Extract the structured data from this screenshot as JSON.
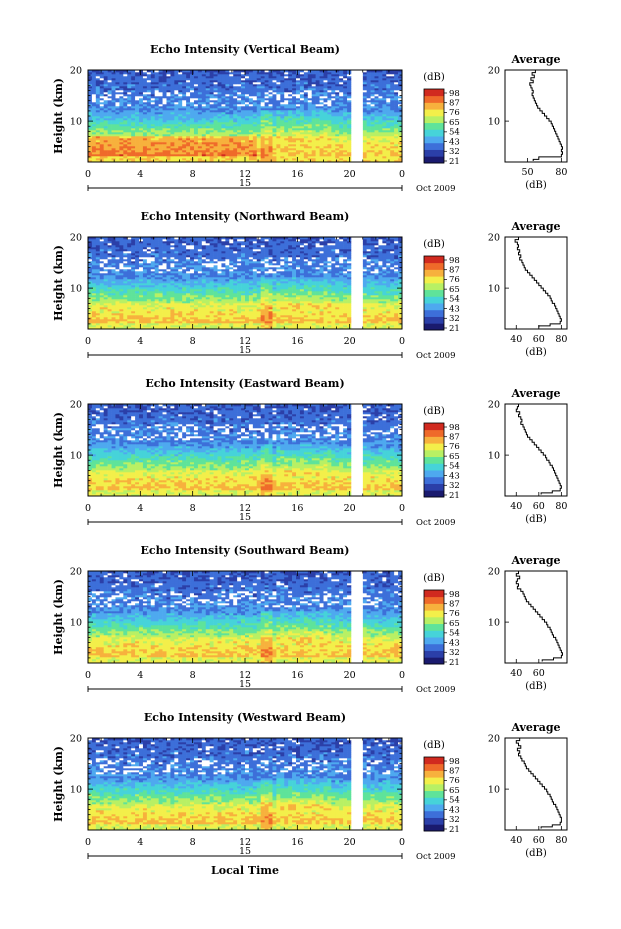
{
  "chart_data": [
    {
      "type": "heatmap",
      "title": "Echo Intensity (Vertical Beam)",
      "ylabel": "Height (km)",
      "xticks": [
        "0",
        "4",
        "8",
        "12",
        "16",
        "20",
        "0"
      ],
      "yticks": [
        "20",
        "10"
      ],
      "ylim": [
        2,
        20
      ],
      "xlim": [
        0,
        24
      ],
      "colorbar": {
        "unit": "(dB)",
        "ticks": [
          "98",
          "87",
          "76",
          "65",
          "54",
          "43",
          "32",
          "21"
        ]
      },
      "date_marker": "15",
      "date_label": "Oct 2009",
      "profile": {
        "title": "Average",
        "xlabel": "(dB)",
        "xticks": [
          "50",
          "80"
        ],
        "yticks": [
          "20",
          "10"
        ],
        "points": [
          [
            55,
            20
          ],
          [
            57,
            19.5
          ],
          [
            54,
            19
          ],
          [
            56,
            18.5
          ],
          [
            53,
            18
          ],
          [
            55,
            17.5
          ],
          [
            52,
            17
          ],
          [
            53,
            16.5
          ],
          [
            54,
            16
          ],
          [
            55,
            15.5
          ],
          [
            54,
            15
          ],
          [
            55,
            14.5
          ],
          [
            56,
            14
          ],
          [
            57,
            13.5
          ],
          [
            58,
            13
          ],
          [
            59,
            12.5
          ],
          [
            61,
            12
          ],
          [
            63,
            11.5
          ],
          [
            65,
            11
          ],
          [
            67,
            10.5
          ],
          [
            69,
            10
          ],
          [
            71,
            9.5
          ],
          [
            72,
            9
          ],
          [
            73,
            8.5
          ],
          [
            74,
            8
          ],
          [
            75,
            7.5
          ],
          [
            76,
            7
          ],
          [
            77,
            6.5
          ],
          [
            78,
            6
          ],
          [
            79,
            5.5
          ],
          [
            80,
            5
          ],
          [
            81,
            4.5
          ],
          [
            80,
            4
          ],
          [
            81,
            3.5
          ],
          [
            80,
            3
          ],
          [
            60,
            2.5
          ],
          [
            55,
            2.2
          ]
        ]
      }
    },
    {
      "type": "heatmap",
      "title": "Echo Intensity (Northward Beam)",
      "ylabel": "Height (km)",
      "xticks": [
        "0",
        "4",
        "8",
        "12",
        "16",
        "20",
        "0"
      ],
      "yticks": [
        "20",
        "10"
      ],
      "ylim": [
        2,
        20
      ],
      "xlim": [
        0,
        24
      ],
      "colorbar": {
        "unit": "(dB)",
        "ticks": [
          "98",
          "87",
          "76",
          "65",
          "54",
          "43",
          "32",
          "21"
        ]
      },
      "date_marker": "15",
      "date_label": "Oct 2009",
      "profile": {
        "title": "Average",
        "xlabel": "(dB)",
        "xticks": [
          "40",
          "60",
          "80"
        ],
        "yticks": [
          "20",
          "10"
        ],
        "points": [
          [
            40,
            20
          ],
          [
            42,
            19.5
          ],
          [
            39,
            19
          ],
          [
            41,
            18.5
          ],
          [
            42,
            18
          ],
          [
            41,
            17.5
          ],
          [
            43,
            17
          ],
          [
            42,
            16.5
          ],
          [
            44,
            16
          ],
          [
            43,
            15.5
          ],
          [
            45,
            15
          ],
          [
            46,
            14.5
          ],
          [
            47,
            14
          ],
          [
            48,
            13.5
          ],
          [
            50,
            13
          ],
          [
            52,
            12.5
          ],
          [
            54,
            12
          ],
          [
            56,
            11.5
          ],
          [
            58,
            11
          ],
          [
            60,
            10.5
          ],
          [
            62,
            10
          ],
          [
            64,
            9.5
          ],
          [
            66,
            9
          ],
          [
            68,
            8.5
          ],
          [
            70,
            8
          ],
          [
            71,
            7.5
          ],
          [
            72,
            7
          ],
          [
            74,
            6.5
          ],
          [
            75,
            6
          ],
          [
            76,
            5.5
          ],
          [
            77,
            5
          ],
          [
            78,
            4.5
          ],
          [
            79,
            4
          ],
          [
            80,
            3.5
          ],
          [
            79,
            3
          ],
          [
            70,
            2.6
          ],
          [
            60,
            2.3
          ]
        ]
      }
    },
    {
      "type": "heatmap",
      "title": "Echo Intensity (Eastward Beam)",
      "ylabel": "Height (km)",
      "xticks": [
        "0",
        "4",
        "8",
        "12",
        "16",
        "20",
        "0"
      ],
      "yticks": [
        "20",
        "10"
      ],
      "ylim": [
        2,
        20
      ],
      "xlim": [
        0,
        24
      ],
      "colorbar": {
        "unit": "(dB)",
        "ticks": [
          "98",
          "87",
          "76",
          "65",
          "54",
          "43",
          "32",
          "21"
        ]
      },
      "date_marker": "15",
      "date_label": "Oct 2009",
      "profile": {
        "title": "Average",
        "xlabel": "(dB)",
        "xticks": [
          "40",
          "60",
          "80"
        ],
        "yticks": [
          "20",
          "10"
        ],
        "points": [
          [
            40,
            20
          ],
          [
            42,
            19.5
          ],
          [
            41,
            19
          ],
          [
            40,
            18.5
          ],
          [
            43,
            18
          ],
          [
            42,
            17.5
          ],
          [
            44,
            17
          ],
          [
            45,
            16.5
          ],
          [
            44,
            16
          ],
          [
            46,
            15.5
          ],
          [
            47,
            15
          ],
          [
            48,
            14.5
          ],
          [
            49,
            14
          ],
          [
            50,
            13.5
          ],
          [
            52,
            13
          ],
          [
            54,
            12.5
          ],
          [
            56,
            12
          ],
          [
            58,
            11.5
          ],
          [
            60,
            11
          ],
          [
            62,
            10.5
          ],
          [
            64,
            10
          ],
          [
            66,
            9.5
          ],
          [
            67,
            9
          ],
          [
            69,
            8.5
          ],
          [
            70,
            8
          ],
          [
            72,
            7.5
          ],
          [
            73,
            7
          ],
          [
            74,
            6.5
          ],
          [
            75,
            6
          ],
          [
            76,
            5.5
          ],
          [
            77,
            5
          ],
          [
            78,
            4.5
          ],
          [
            79,
            4
          ],
          [
            80,
            3.5
          ],
          [
            79,
            3
          ],
          [
            72,
            2.6
          ],
          [
            62,
            2.3
          ]
        ]
      }
    },
    {
      "type": "heatmap",
      "title": "Echo Intensity (Southward Beam)",
      "ylabel": "Height (km)",
      "xticks": [
        "0",
        "4",
        "8",
        "12",
        "16",
        "20",
        "0"
      ],
      "yticks": [
        "20",
        "10"
      ],
      "ylim": [
        2,
        20
      ],
      "xlim": [
        0,
        24
      ],
      "colorbar": {
        "unit": "(dB)",
        "ticks": [
          "98",
          "87",
          "76",
          "65",
          "54",
          "43",
          "32",
          "21"
        ]
      },
      "date_marker": "15",
      "date_label": "Oct 2009",
      "profile": {
        "title": "Average",
        "xlabel": "(dB)",
        "xticks": [
          "40",
          "60"
        ],
        "yticks": [
          "20",
          "10"
        ],
        "points": [
          [
            40,
            20
          ],
          [
            42,
            19.5
          ],
          [
            40,
            19
          ],
          [
            43,
            18.5
          ],
          [
            41,
            18
          ],
          [
            40,
            17.5
          ],
          [
            42,
            17
          ],
          [
            41,
            16.5
          ],
          [
            44,
            16
          ],
          [
            46,
            15.5
          ],
          [
            47,
            15
          ],
          [
            48,
            14.5
          ],
          [
            49,
            14
          ],
          [
            51,
            13.5
          ],
          [
            53,
            13
          ],
          [
            55,
            12.5
          ],
          [
            57,
            12
          ],
          [
            59,
            11.5
          ],
          [
            61,
            11
          ],
          [
            63,
            10.5
          ],
          [
            65,
            10
          ],
          [
            67,
            9.5
          ],
          [
            68,
            9
          ],
          [
            70,
            8.5
          ],
          [
            71,
            8
          ],
          [
            72,
            7.5
          ],
          [
            73,
            7
          ],
          [
            75,
            6.5
          ],
          [
            76,
            6
          ],
          [
            77,
            5.5
          ],
          [
            78,
            5
          ],
          [
            79,
            4.5
          ],
          [
            80,
            4
          ],
          [
            81,
            3.5
          ],
          [
            80,
            3
          ],
          [
            73,
            2.6
          ],
          [
            63,
            2.3
          ]
        ]
      }
    },
    {
      "type": "heatmap",
      "title": "Echo Intensity (Westward Beam)",
      "ylabel": "Height (km)",
      "xticks": [
        "0",
        "4",
        "8",
        "12",
        "16",
        "20",
        "0"
      ],
      "yticks": [
        "20",
        "10"
      ],
      "ylim": [
        2,
        20
      ],
      "xlim": [
        0,
        24
      ],
      "colorbar": {
        "unit": "(dB)",
        "ticks": [
          "98",
          "87",
          "76",
          "65",
          "54",
          "43",
          "32",
          "21"
        ]
      },
      "date_marker": "15",
      "date_label": "Oct 2009",
      "xlabel": "Local Time",
      "profile": {
        "title": "Average",
        "xlabel": "(dB)",
        "xticks": [
          "40",
          "60",
          "80"
        ],
        "yticks": [
          "20",
          "10"
        ],
        "points": [
          [
            40,
            20
          ],
          [
            43,
            19.5
          ],
          [
            40,
            19
          ],
          [
            42,
            18.5
          ],
          [
            44,
            18
          ],
          [
            41,
            17.5
          ],
          [
            43,
            17
          ],
          [
            42,
            16.5
          ],
          [
            44,
            16
          ],
          [
            45,
            15.5
          ],
          [
            47,
            15
          ],
          [
            48,
            14.5
          ],
          [
            49,
            14
          ],
          [
            51,
            13.5
          ],
          [
            53,
            13
          ],
          [
            55,
            12.5
          ],
          [
            57,
            12
          ],
          [
            59,
            11.5
          ],
          [
            61,
            11
          ],
          [
            63,
            10.5
          ],
          [
            65,
            10
          ],
          [
            67,
            9.5
          ],
          [
            68,
            9
          ],
          [
            70,
            8.5
          ],
          [
            71,
            8
          ],
          [
            72,
            7.5
          ],
          [
            73,
            7
          ],
          [
            75,
            6.5
          ],
          [
            76,
            6
          ],
          [
            77,
            5.5
          ],
          [
            78,
            5
          ],
          [
            79,
            4.5
          ],
          [
            80,
            4
          ],
          [
            80,
            3.5
          ],
          [
            79,
            3
          ],
          [
            72,
            2.6
          ],
          [
            62,
            2.3
          ]
        ]
      }
    }
  ],
  "colors": {
    "palette": [
      "#1a1a6e",
      "#2b3fa8",
      "#3d6fd9",
      "#4ea9ef",
      "#46d3d9",
      "#5fe39a",
      "#b8f064",
      "#f3ef4a",
      "#f7b13d",
      "#ef6a2a",
      "#d12a1f"
    ],
    "gap": "#ffffff",
    "axis": "#000000"
  }
}
